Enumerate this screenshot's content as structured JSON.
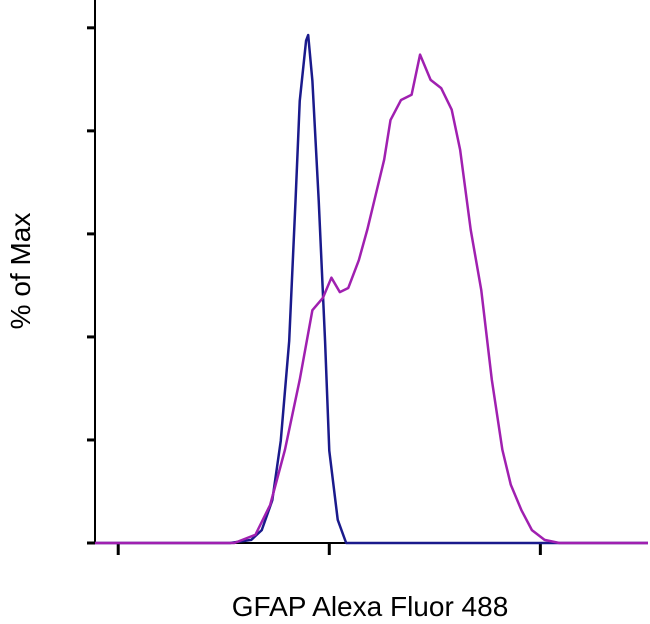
{
  "chart_data": {
    "type": "line",
    "xlabel": "GFAP Alexa Fluor 488",
    "ylabel": "% of Max",
    "xlim": [
      -0.11,
      2.51
    ],
    "xticks": [
      0,
      1,
      2
    ],
    "ylim": [
      0,
      105.4
    ],
    "yticks": [
      0,
      20,
      40,
      60,
      80,
      100
    ],
    "series": [
      {
        "color": "#1a1a8c",
        "x": [
          -0.11,
          0.53,
          0.63,
          0.68,
          0.73,
          0.77,
          0.81,
          0.84,
          0.86,
          0.89,
          0.9,
          0.92,
          0.95,
          0.98,
          1.0,
          1.04,
          1.08,
          2.51
        ],
        "values": [
          0,
          0,
          0.6,
          2.5,
          8.3,
          19.8,
          39.2,
          66.4,
          85.8,
          97.5,
          98.6,
          89.7,
          66.4,
          39.2,
          17.9,
          4.5,
          0,
          0
        ]
      },
      {
        "color": "#a020b0",
        "x": [
          -0.11,
          0.55,
          0.65,
          0.72,
          0.79,
          0.86,
          0.92,
          0.97,
          1.01,
          1.05,
          1.09,
          1.14,
          1.18,
          1.22,
          1.26,
          1.29,
          1.34,
          1.39,
          1.43,
          1.48,
          1.53,
          1.58,
          1.62,
          1.67,
          1.72,
          1.77,
          1.82,
          1.86,
          1.91,
          1.96,
          2.02,
          2.09,
          2.51
        ],
        "values": [
          0,
          0,
          1.6,
          7.4,
          18.1,
          31.7,
          45.2,
          47.6,
          51.5,
          48.7,
          49.5,
          54.9,
          60.8,
          67.6,
          74.4,
          82.1,
          86.0,
          87.0,
          94.8,
          89.9,
          88.3,
          84.1,
          76.3,
          60.8,
          49.1,
          31.7,
          18.1,
          11.3,
          6.4,
          2.5,
          0.6,
          0,
          0
        ]
      }
    ]
  }
}
